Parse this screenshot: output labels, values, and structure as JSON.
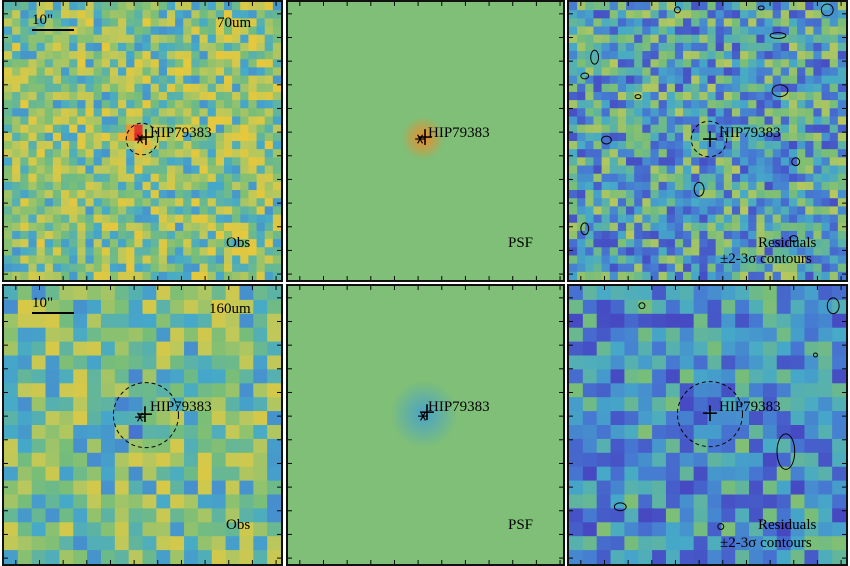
{
  "target": "HIP79383",
  "scale_bar": "10\"",
  "rows": [
    {
      "band": "70um",
      "labels": {
        "obs": "Obs",
        "psf": "PSF",
        "res1": "Residuals",
        "res2": "±2-3σ contours"
      }
    },
    {
      "band": "160um",
      "labels": {
        "obs": "Obs",
        "psf": "PSF",
        "res1": "Residuals",
        "res2": "±2-3σ contours"
      }
    }
  ],
  "colors": {
    "psf_background": "#7fbf77",
    "psf_core_70um": "#f08a2a",
    "psf_core_160um": "#4aa3c8",
    "contour": "#000000"
  }
}
